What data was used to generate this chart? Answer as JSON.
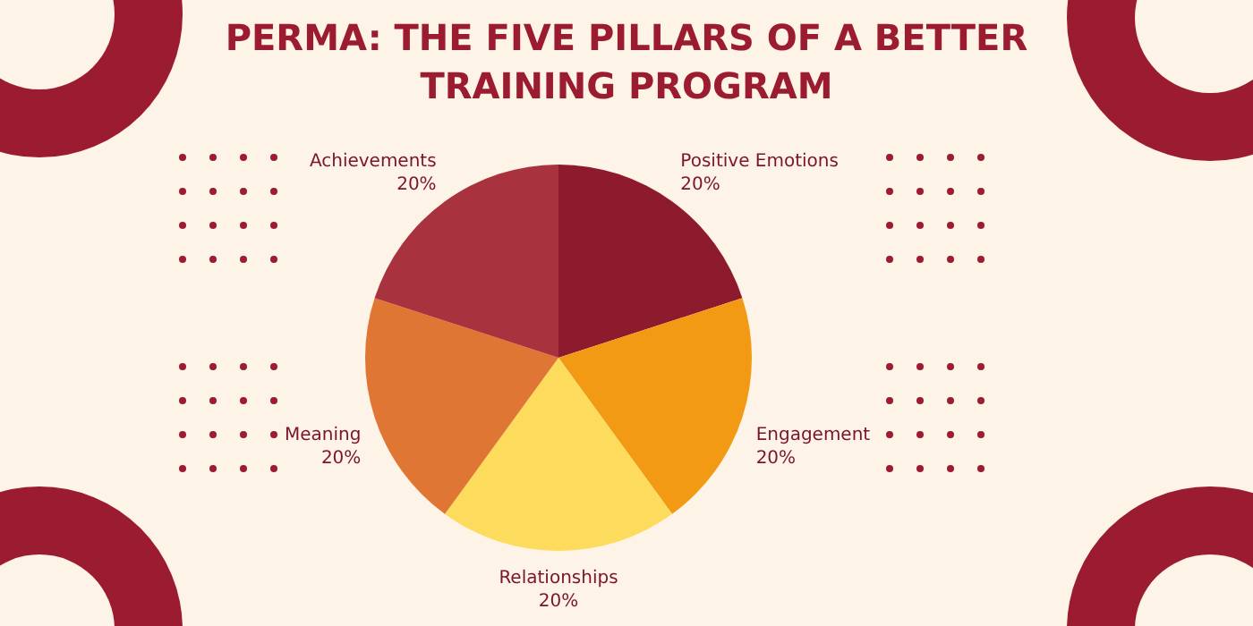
{
  "chart_data": {
    "type": "pie",
    "title": "PERMA: THE FIVE PILLARS OF A BETTER TRAINING PROGRAM",
    "categories": [
      "Positive Emotions",
      "Engagement",
      "Relationships",
      "Meaning",
      "Achievements"
    ],
    "values": [
      20,
      20,
      20,
      20,
      20
    ],
    "colors": [
      "#8e1a2e",
      "#f39a14",
      "#fddb5c",
      "#e07634",
      "#a8333f"
    ],
    "value_labels": [
      "20%",
      "20%",
      "20%",
      "20%",
      "20%"
    ]
  }
}
